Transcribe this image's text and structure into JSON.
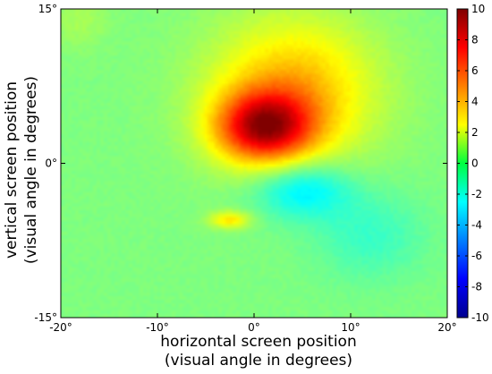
{
  "chart_data": {
    "type": "heatmap",
    "title": "",
    "xlabel_line1": "horizontal screen position",
    "xlabel_line2": "(visual angle in degrees)",
    "ylabel_line1": "vertical screen position",
    "ylabel_line2": "(visual angle in degrees)",
    "xlim": [
      -20,
      20
    ],
    "ylim": [
      -15,
      15
    ],
    "x_ticks": [
      {
        "value": -20,
        "label": "-20°"
      },
      {
        "value": -10,
        "label": "-10°"
      },
      {
        "value": 0,
        "label": "0°"
      },
      {
        "value": 10,
        "label": "10°"
      },
      {
        "value": 20,
        "label": "20°"
      }
    ],
    "y_ticks": [
      {
        "value": 15,
        "label": "15°"
      },
      {
        "value": 0,
        "label": "0°"
      },
      {
        "value": -15,
        "label": "-15°"
      }
    ],
    "colorbar": {
      "colormap": "jet",
      "min": -10,
      "max": 10,
      "ticks": [
        {
          "value": 10,
          "label": "10"
        },
        {
          "value": 8,
          "label": "8"
        },
        {
          "value": 6,
          "label": "6"
        },
        {
          "value": 4,
          "label": "4"
        },
        {
          "value": 2,
          "label": "2"
        },
        {
          "value": 0,
          "label": "0"
        },
        {
          "value": -2,
          "label": "-2"
        },
        {
          "value": -4,
          "label": "-4"
        },
        {
          "value": -6,
          "label": "-6"
        },
        {
          "value": -8,
          "label": "-8"
        },
        {
          "value": -10,
          "label": "-10"
        }
      ]
    },
    "background_value": 0,
    "regions": [
      {
        "kind": "excitatory",
        "center_x": 4,
        "center_y": 7,
        "spread_x": 6,
        "spread_y": 5,
        "peak": 4
      },
      {
        "kind": "excitatory",
        "center_x": 1,
        "center_y": 3.5,
        "spread_x": 3.5,
        "spread_y": 2.4,
        "peak": 7.5
      },
      {
        "kind": "excitatory",
        "center_x": -2.5,
        "center_y": -5.5,
        "spread_x": 1.5,
        "spread_y": 0.6,
        "peak": 3
      },
      {
        "kind": "inhibitory",
        "center_x": 5,
        "center_y": -2.5,
        "spread_x": 3.5,
        "spread_y": 2,
        "peak": -3.2
      },
      {
        "kind": "inhibitory",
        "center_x": 12,
        "center_y": -7,
        "spread_x": 4,
        "spread_y": 3,
        "peak": -1.4
      },
      {
        "kind": "excitatory",
        "center_x": -18,
        "center_y": 14,
        "spread_x": 2,
        "spread_y": 2,
        "peak": 0.8
      }
    ]
  }
}
